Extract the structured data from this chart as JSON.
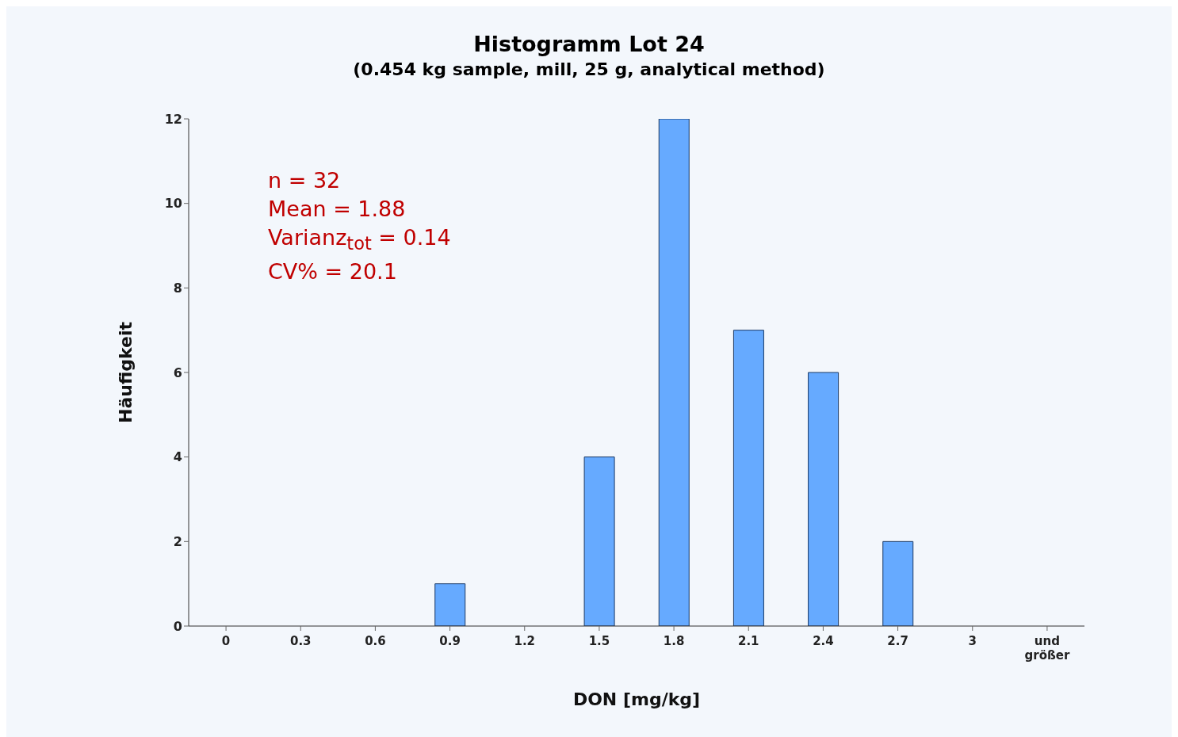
{
  "chart_data": {
    "type": "bar",
    "title": "Histogramm Lot 24",
    "subtitle": "(0.454 kg sample, mill, 25 g, analytical method)",
    "xlabel": "DON [mg/kg]",
    "ylabel": "Häufigkeit",
    "categories": [
      "0",
      "0.3",
      "0.6",
      "0.9",
      "1.2",
      "1.5",
      "1.8",
      "2.1",
      "2.4",
      "2.7",
      "3",
      "und größer"
    ],
    "values": [
      0,
      0,
      0,
      1,
      0,
      4,
      12,
      7,
      6,
      2,
      0,
      0
    ],
    "color": "#66aaff",
    "ylim": [
      0,
      12
    ],
    "yticks": [
      0,
      2,
      4,
      6,
      8,
      10,
      12
    ],
    "grid": false,
    "legend": false,
    "annotations": [
      "n = 32",
      "Mean = 1.88",
      "Varianz$_{tot}$ = 0.14",
      "CV% = 20.1"
    ]
  }
}
